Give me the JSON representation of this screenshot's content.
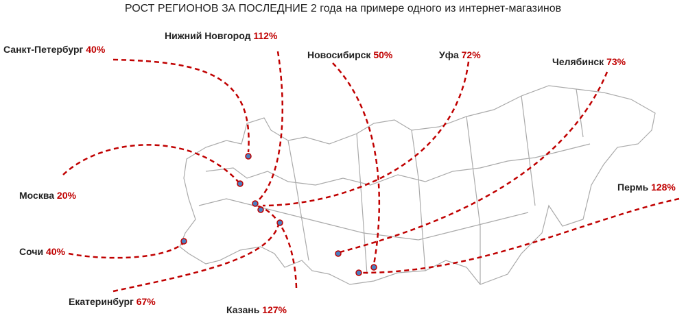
{
  "title": "РОСТ РЕГИОНОВ ЗА ПОСЛЕДНИЕ 2 года на примере одного из интернет-магазинов",
  "cities": [
    {
      "name": "Санкт-Петербург",
      "growth": "40%"
    },
    {
      "name": "Нижний Новгород",
      "growth": "112%"
    },
    {
      "name": "Новосибирск",
      "growth": "50%"
    },
    {
      "name": "Уфа",
      "growth": "72%"
    },
    {
      "name": "Челябинск",
      "growth": "73%"
    },
    {
      "name": "Пермь",
      "growth": "128%"
    },
    {
      "name": "Москва",
      "growth": "20%"
    },
    {
      "name": "Сочи",
      "growth": "40%"
    },
    {
      "name": "Екатеринбург",
      "growth": "67%"
    },
    {
      "name": "Казань",
      "growth": "127%"
    }
  ]
}
